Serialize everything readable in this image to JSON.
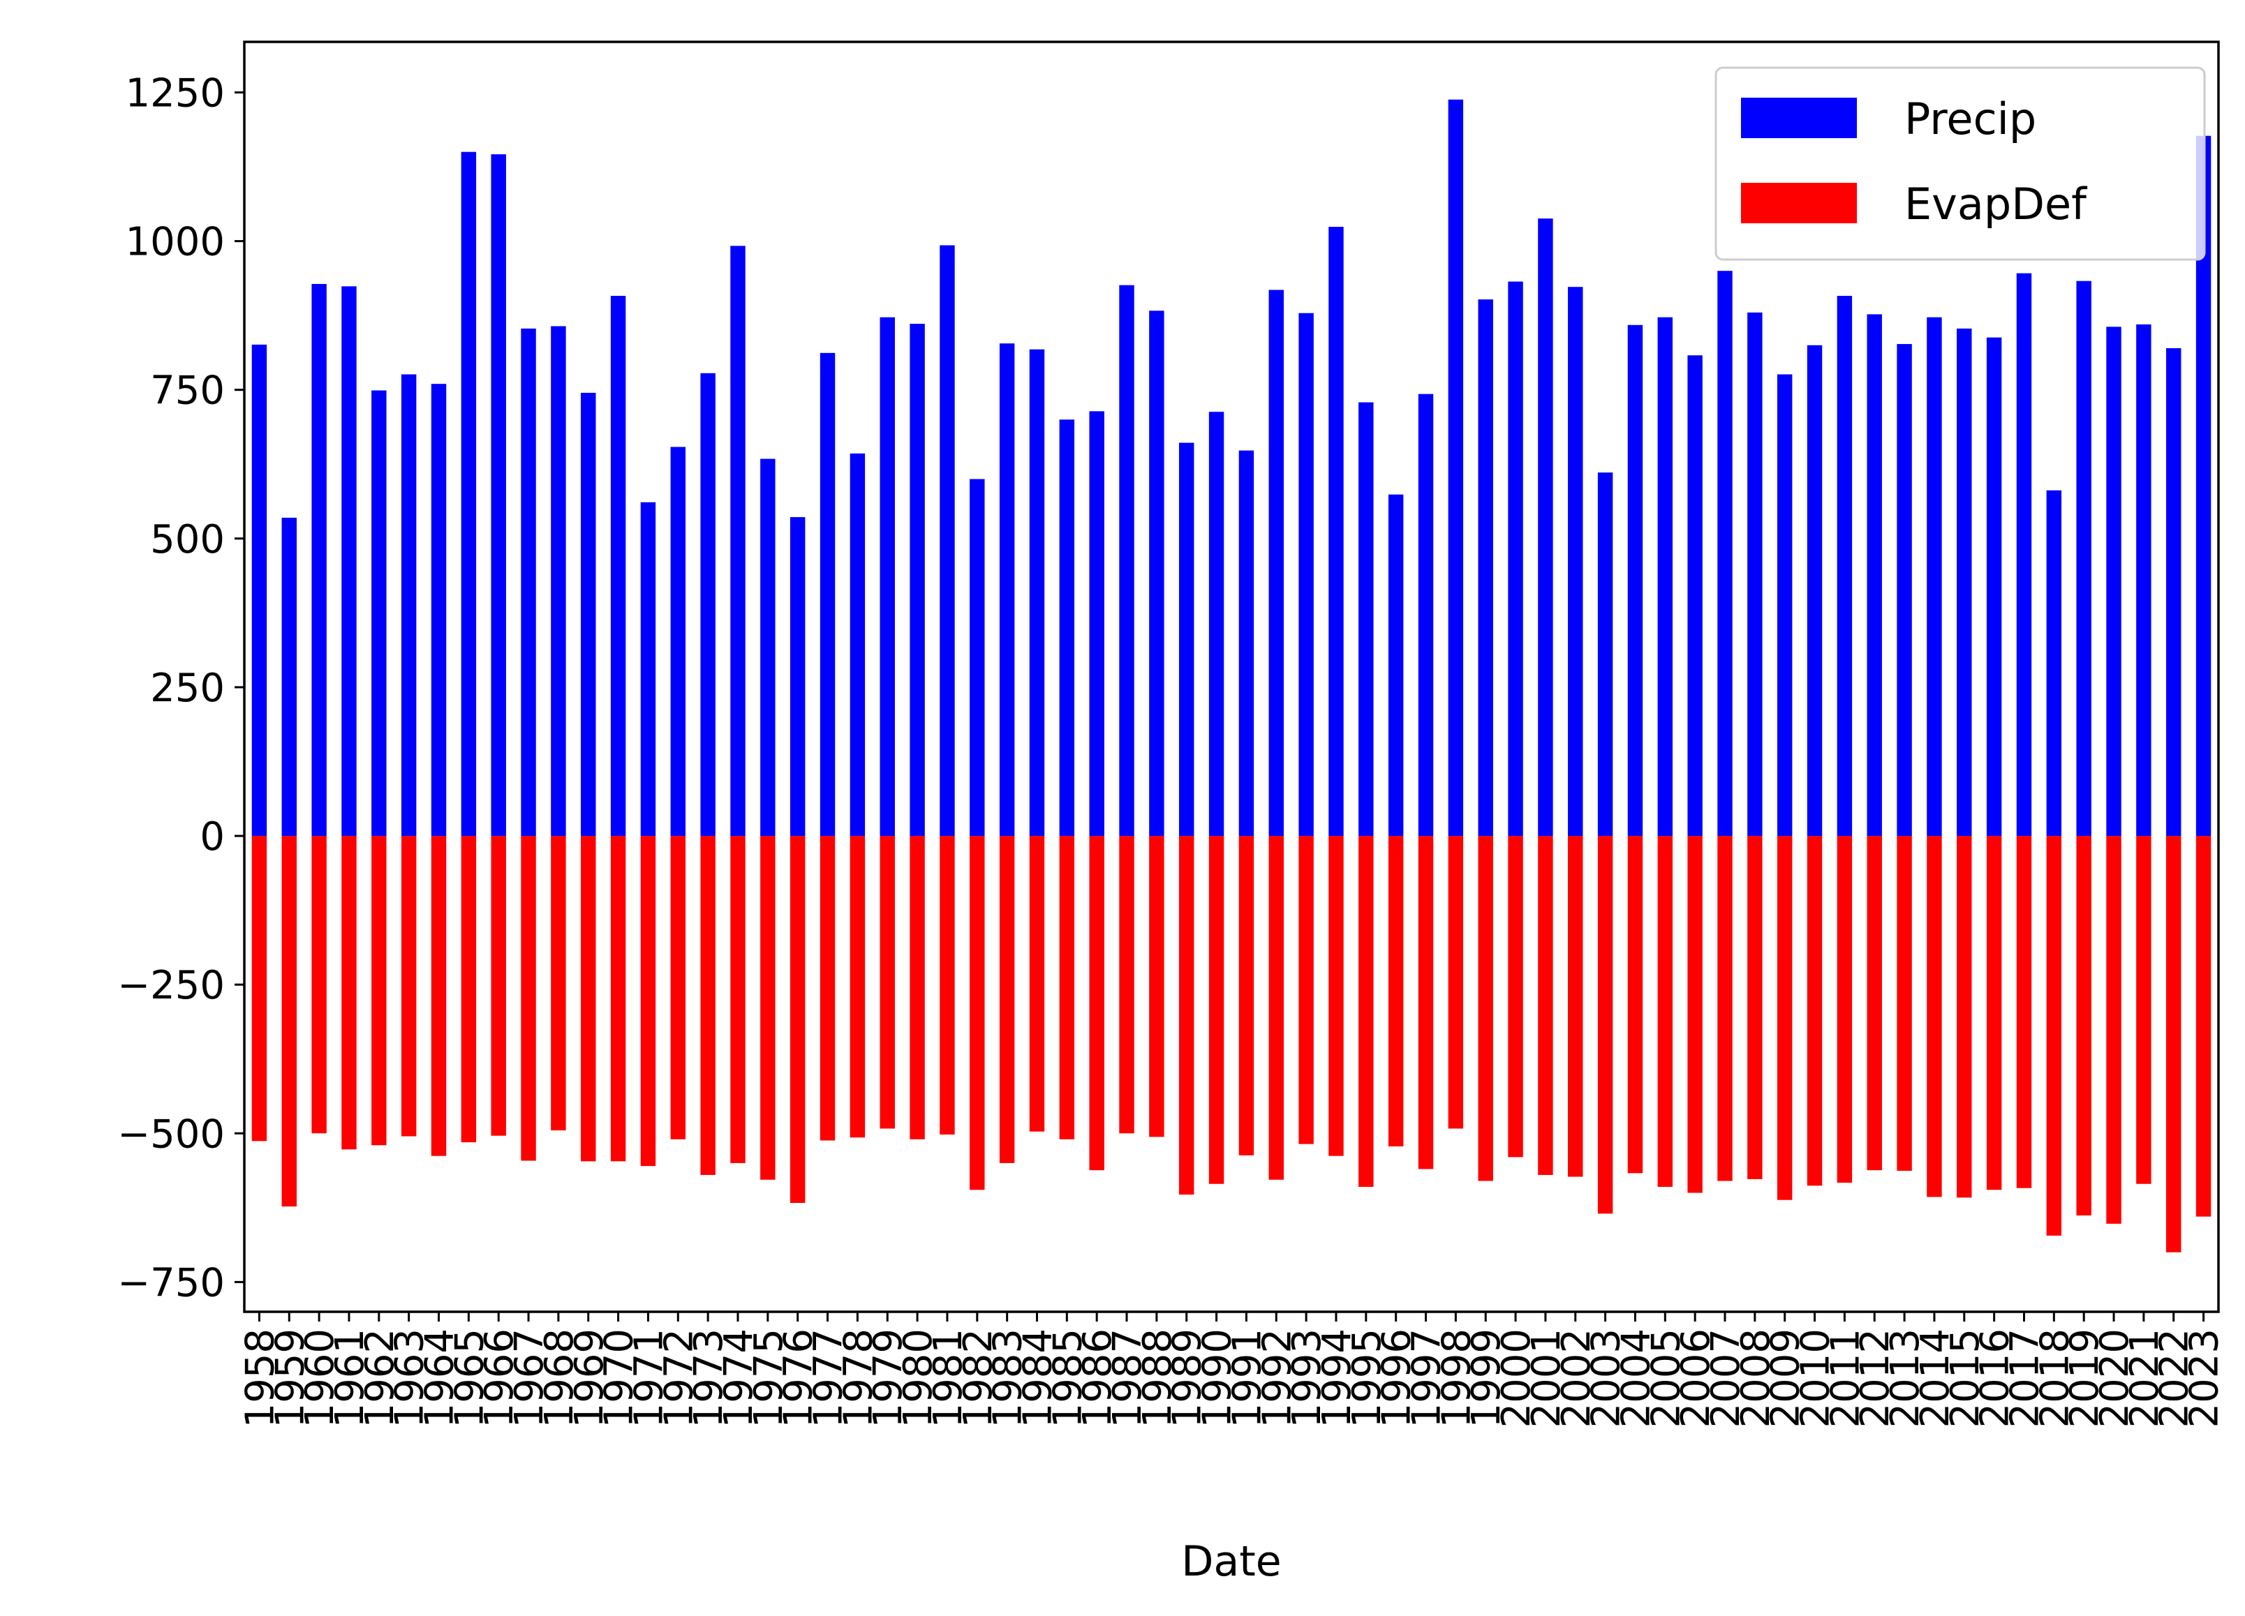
{
  "chart_data": {
    "type": "bar",
    "title": "",
    "xlabel": "Date",
    "ylabel": "",
    "ylim": [
      -800,
      1335
    ],
    "yticks": [
      -750,
      -500,
      -250,
      0,
      250,
      500,
      750,
      1000,
      1250
    ],
    "ytick_labels": [
      "−750",
      "−500",
      "−250",
      "0",
      "250",
      "500",
      "750",
      "1000",
      "1250"
    ],
    "grid": false,
    "legend_position": "top-right",
    "categories": [
      "1958",
      "1959",
      "1960",
      "1961",
      "1962",
      "1963",
      "1964",
      "1965",
      "1966",
      "1967",
      "1968",
      "1969",
      "1970",
      "1971",
      "1972",
      "1973",
      "1974",
      "1975",
      "1976",
      "1977",
      "1978",
      "1979",
      "1980",
      "1981",
      "1982",
      "1983",
      "1984",
      "1985",
      "1986",
      "1987",
      "1988",
      "1989",
      "1990",
      "1991",
      "1992",
      "1993",
      "1994",
      "1995",
      "1996",
      "1997",
      "1998",
      "1999",
      "2000",
      "2001",
      "2002",
      "2003",
      "2004",
      "2005",
      "2006",
      "2007",
      "2008",
      "2009",
      "2010",
      "2011",
      "2012",
      "2013",
      "2014",
      "2015",
      "2016",
      "2017",
      "2018",
      "2019",
      "2020",
      "2021",
      "2022",
      "2023"
    ],
    "series": [
      {
        "name": "Precip",
        "color": "#0000ff",
        "values": [
          826,
          535,
          928,
          924,
          749,
          776,
          760,
          1150,
          1146,
          853,
          857,
          745,
          908,
          561,
          654,
          778,
          992,
          634,
          536,
          812,
          643,
          872,
          861,
          993,
          600,
          828,
          818,
          700,
          714,
          926,
          883,
          661,
          713,
          648,
          918,
          879,
          1024,
          729,
          574,
          743,
          1238,
          902,
          932,
          1038,
          923,
          611,
          859,
          872,
          808,
          950,
          880,
          776,
          825,
          908,
          877,
          827,
          872,
          853,
          838,
          946,
          581,
          933,
          856,
          860,
          820,
          1177
        ]
      },
      {
        "name": "EvapDef",
        "color": "#ff0000",
        "values": [
          -513,
          -623,
          -500,
          -527,
          -520,
          -505,
          -538,
          -515,
          -504,
          -546,
          -495,
          -547,
          -547,
          -555,
          -510,
          -570,
          -550,
          -578,
          -617,
          -512,
          -507,
          -492,
          -510,
          -502,
          -595,
          -550,
          -497,
          -510,
          -562,
          -500,
          -506,
          -603,
          -585,
          -537,
          -578,
          -518,
          -538,
          -590,
          -522,
          -560,
          -492,
          -580,
          -540,
          -570,
          -573,
          -635,
          -567,
          -590,
          -600,
          -580,
          -577,
          -612,
          -588,
          -583,
          -562,
          -563,
          -607,
          -608,
          -595,
          -592,
          -672,
          -638,
          -652,
          -585,
          -700,
          -640
        ]
      }
    ]
  }
}
